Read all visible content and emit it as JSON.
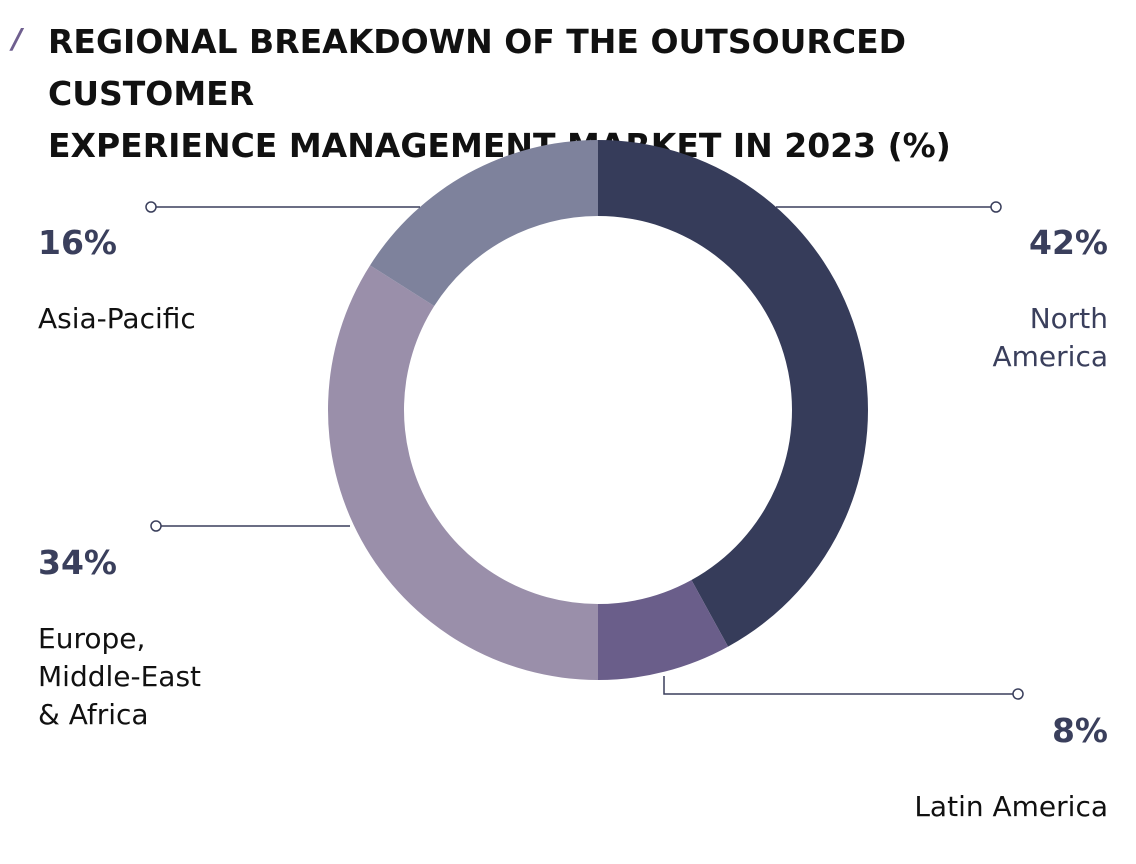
{
  "header": {
    "title": "REGIONAL BREAKDOWN OF THE OUTSOURCED CUSTOMER\nEXPERIENCE MANAGEMENT MARKET IN 2023 (%)"
  },
  "chart_data": {
    "type": "pie",
    "variant": "donut",
    "title": "REGIONAL BREAKDOWN OF THE OUTSOURCED CUSTOMER EXPERIENCE MANAGEMENT MARKET IN 2023 (%)",
    "unit": "%",
    "slices": [
      {
        "name": "North America",
        "label_text": "North\nAmerica",
        "value": 42,
        "value_label": "42%",
        "color": "#363c5a"
      },
      {
        "name": "Latin America",
        "label_text": "Latin America",
        "value": 8,
        "value_label": "8%",
        "color": "#6a5e8a"
      },
      {
        "name": "Europe, Middle-East & Africa",
        "label_text": "Europe,\nMiddle-East\n& Africa",
        "value": 34,
        "value_label": "34%",
        "color": "#9a8faa"
      },
      {
        "name": "Asia-Pacific",
        "label_text": "Asia-Pacific",
        "value": 16,
        "value_label": "16%",
        "color": "#7e829c"
      }
    ],
    "start_angle": "top",
    "direction": "clockwise",
    "leader_color": "#3a3f5c"
  }
}
